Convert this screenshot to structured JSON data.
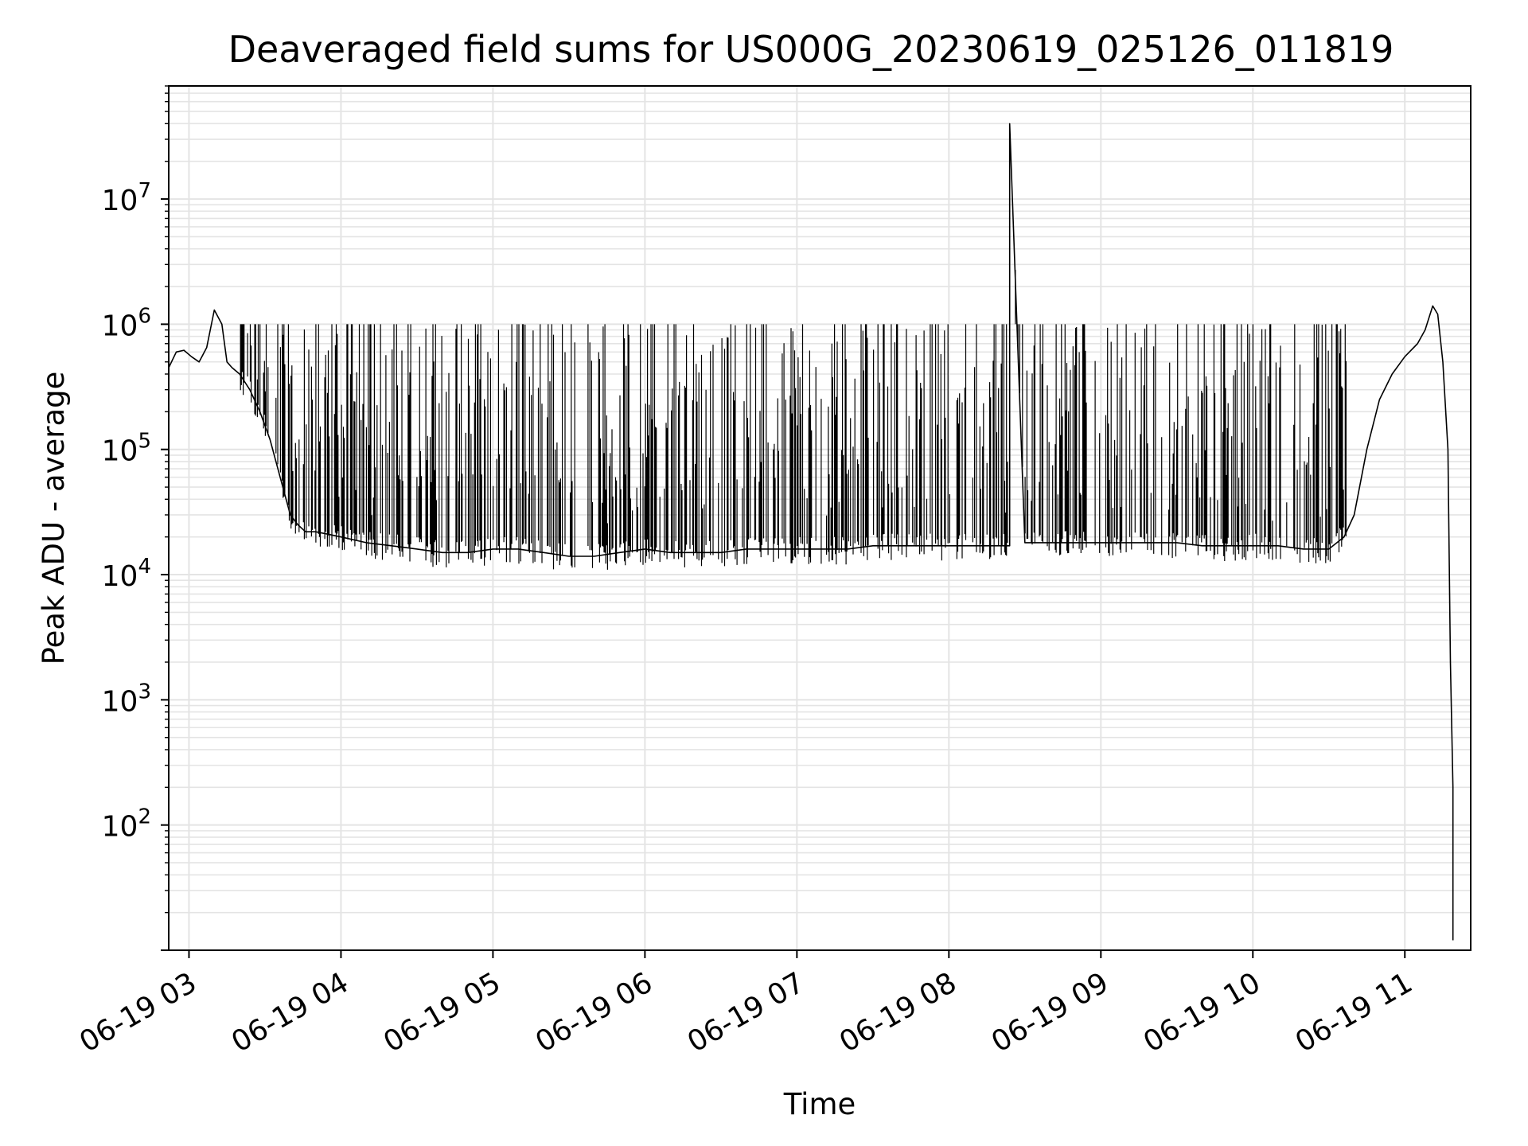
{
  "chart_data": {
    "type": "line",
    "title": "Deaveraged field sums for US000G_20230619_025126_011819",
    "xlabel": "Time",
    "ylabel": "Peak ADU - average",
    "yscale": "log",
    "grid": true,
    "x_ticks": [
      "06-19 03",
      "06-19 04",
      "06-19 05",
      "06-19 06",
      "06-19 07",
      "06-19 08",
      "06-19 09",
      "06-19 10",
      "06-19 11"
    ],
    "y_ticks": [
      {
        "base": "10",
        "exp": "2"
      },
      {
        "base": "10",
        "exp": "3"
      },
      {
        "base": "10",
        "exp": "4"
      },
      {
        "base": "10",
        "exp": "5"
      },
      {
        "base": "10",
        "exp": "6"
      },
      {
        "base": "10",
        "exp": "7"
      }
    ],
    "xlim": [
      "2023-06-19 02:52",
      "2023-06-19 11:26"
    ],
    "ylim": [
      10,
      80000000
    ],
    "series_color": "#000000",
    "series": [
      {
        "x": [
          "2023-06-19 02:52",
          "2023-06-19 02:55",
          "2023-06-19 02:58",
          "2023-06-19 03:01",
          "2023-06-19 03:04",
          "2023-06-19 03:07",
          "2023-06-19 03:10",
          "2023-06-19 03:13",
          "2023-06-19 03:15",
          "2023-06-19 03:17",
          "2023-06-19 03:20",
          "2023-06-19 03:24",
          "2023-06-19 03:28",
          "2023-06-19 03:32",
          "2023-06-19 03:36",
          "2023-06-19 03:40",
          "2023-06-19 03:43",
          "2023-06-19 03:46",
          "2023-06-19 03:50",
          "2023-06-19 03:55",
          "2023-06-19 04:00",
          "2023-06-19 04:10",
          "2023-06-19 04:20",
          "2023-06-19 04:30",
          "2023-06-19 04:40",
          "2023-06-19 04:50",
          "2023-06-19 05:00",
          "2023-06-19 05:10",
          "2023-06-19 05:20",
          "2023-06-19 05:30",
          "2023-06-19 05:40",
          "2023-06-19 05:50",
          "2023-06-19 06:00",
          "2023-06-19 06:10",
          "2023-06-19 06:20",
          "2023-06-19 06:30",
          "2023-06-19 06:40",
          "2023-06-19 06:50",
          "2023-06-19 07:00",
          "2023-06-19 07:10",
          "2023-06-19 07:20",
          "2023-06-19 07:30",
          "2023-06-19 07:40",
          "2023-06-19 07:50",
          "2023-06-19 08:00",
          "2023-06-19 08:10",
          "2023-06-19 08:20",
          "2023-06-19 08:24",
          "2023-06-19 08:24",
          "2023-06-19 08:30",
          "2023-06-19 08:40",
          "2023-06-19 08:50",
          "2023-06-19 09:00",
          "2023-06-19 09:10",
          "2023-06-19 09:20",
          "2023-06-19 09:30",
          "2023-06-19 09:40",
          "2023-06-19 09:50",
          "2023-06-19 10:00",
          "2023-06-19 10:10",
          "2023-06-19 10:20",
          "2023-06-19 10:30",
          "2023-06-19 10:36",
          "2023-06-19 10:40",
          "2023-06-19 10:45",
          "2023-06-19 10:50",
          "2023-06-19 10:55",
          "2023-06-19 11:00",
          "2023-06-19 11:05",
          "2023-06-19 11:08",
          "2023-06-19 11:11",
          "2023-06-19 11:13",
          "2023-06-19 11:15",
          "2023-06-19 11:17",
          "2023-06-19 11:18",
          "2023-06-19 11:19",
          "2023-06-19 11:19",
          "2023-06-19 11:19"
        ],
        "y": [
          450000,
          600000,
          620000,
          550000,
          500000,
          650000,
          1300000,
          1000000,
          500000,
          450000,
          400000,
          300000,
          200000,
          120000,
          60000,
          30000,
          25000,
          22000,
          22000,
          21000,
          20000,
          18000,
          17000,
          16000,
          15000,
          15000,
          16000,
          16000,
          15000,
          14000,
          14000,
          15000,
          16000,
          15000,
          15000,
          15000,
          16000,
          16000,
          16000,
          16000,
          16000,
          17000,
          17000,
          17000,
          17000,
          17000,
          17000,
          17000,
          40000000,
          18000,
          18000,
          18000,
          18000,
          18000,
          18000,
          18000,
          17000,
          17000,
          17000,
          17000,
          16000,
          16000,
          20000,
          30000,
          100000,
          250000,
          400000,
          550000,
          700000,
          900000,
          1400000,
          1200000,
          500000,
          100000,
          2000,
          200,
          50,
          12
        ]
      }
    ]
  }
}
